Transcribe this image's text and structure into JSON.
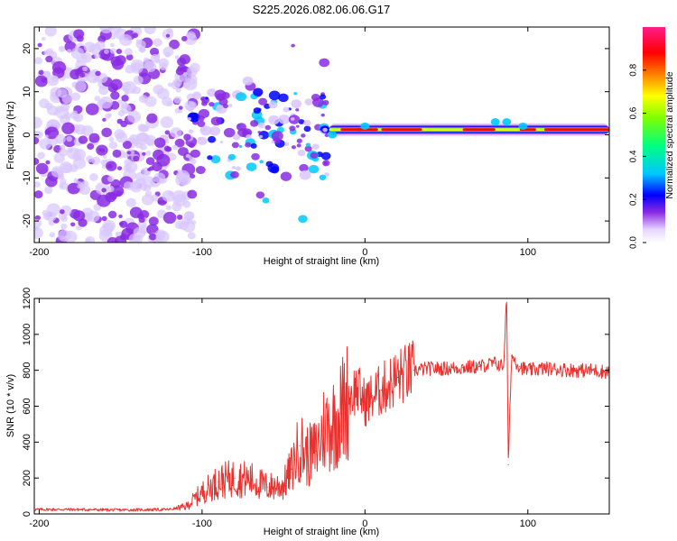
{
  "title": "S225.2026.082.06.06.G17",
  "chart_data": [
    {
      "type": "heatmap",
      "xlabel": "Height of straight line (km)",
      "ylabel": "Frequency (Hz)",
      "xlim": [
        -203,
        150
      ],
      "ylim": [
        -25,
        25
      ],
      "xticks": [
        -200,
        -100,
        0,
        100
      ],
      "yticks": [
        -20,
        -10,
        0,
        10,
        20
      ],
      "colorbar": {
        "label": "Normalized spectral amplitude",
        "range": [
          0,
          1
        ],
        "ticks": [
          "0.0",
          "0.2",
          "0.4",
          "0.6",
          "0.8"
        ]
      },
      "ridge": {
        "x_start": -22,
        "x_end": 150,
        "frequency": 1.2
      },
      "noise_region": {
        "x_start": -203,
        "x_end": -112
      }
    },
    {
      "type": "line",
      "xlabel": "Height of straight line (km)",
      "ylabel": "SNR (10 * v/v)",
      "xlim": [
        -203,
        150
      ],
      "ylim": [
        0,
        1200
      ],
      "xticks": [
        -200,
        -100,
        0,
        100
      ],
      "yticks": [
        0,
        200,
        400,
        600,
        800,
        1000,
        1200
      ],
      "color": "#e8322f",
      "series": [
        {
          "name": "SNR",
          "x": [
            -203,
            -180,
            -150,
            -120,
            -110,
            -100,
            -90,
            -80,
            -70,
            -60,
            -50,
            -45,
            -40,
            -35,
            -30,
            -25,
            -20,
            -15,
            -10,
            -5,
            0,
            10,
            20,
            30,
            40,
            50,
            60,
            70,
            80,
            85,
            87,
            88,
            90,
            95,
            100,
            110,
            120,
            130,
            140,
            150
          ],
          "values": [
            25,
            25,
            22,
            25,
            40,
            120,
            180,
            200,
            190,
            150,
            160,
            250,
            380,
            320,
            350,
            480,
            500,
            560,
            650,
            700,
            620,
            690,
            760,
            800,
            810,
            810,
            815,
            820,
            840,
            820,
            1200,
            275,
            880,
            820,
            800,
            810,
            805,
            800,
            800,
            790
          ]
        }
      ]
    }
  ]
}
